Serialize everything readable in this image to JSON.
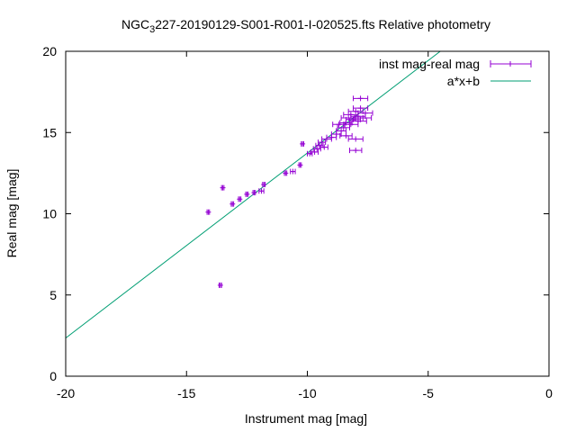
{
  "chart_data": {
    "type": "scatter",
    "title": "NGC 3227-20190129-S001-R001-I-020525.fts Relative photometry",
    "title_parts": {
      "prefix": "NGC",
      "sub": "3",
      "suffix": "227-20190129-S001-R001-I-020525.fts Relative photometry"
    },
    "xlabel": "Instrument mag [mag]",
    "ylabel": "Real mag [mag]",
    "xlim": [
      -20,
      0
    ],
    "ylim": [
      0,
      20
    ],
    "xticks": [
      -20,
      -15,
      -10,
      -5,
      0
    ],
    "yticks": [
      0,
      5,
      10,
      15,
      20
    ],
    "grid": false,
    "legend_position": "top-right",
    "colors": {
      "points": "#9400d3",
      "fit": "#009e73"
    },
    "series": [
      {
        "name": "inst mag-real mag",
        "kind": "points_with_xerror",
        "points": [
          {
            "x": -13.6,
            "y": 5.6,
            "xerr": 0.05
          },
          {
            "x": -14.1,
            "y": 10.1,
            "xerr": 0.05
          },
          {
            "x": -13.5,
            "y": 11.6,
            "xerr": 0.05
          },
          {
            "x": -13.1,
            "y": 10.6,
            "xerr": 0.05
          },
          {
            "x": -12.8,
            "y": 10.9,
            "xerr": 0.05
          },
          {
            "x": -12.5,
            "y": 11.2,
            "xerr": 0.05
          },
          {
            "x": -12.2,
            "y": 11.3,
            "xerr": 0.05
          },
          {
            "x": -11.9,
            "y": 11.4,
            "xerr": 0.1
          },
          {
            "x": -11.8,
            "y": 11.8,
            "xerr": 0.05
          },
          {
            "x": -10.9,
            "y": 12.5,
            "xerr": 0.05
          },
          {
            "x": -10.6,
            "y": 12.6,
            "xerr": 0.1
          },
          {
            "x": -10.3,
            "y": 13.0,
            "xerr": 0.05
          },
          {
            "x": -10.2,
            "y": 14.3,
            "xerr": 0.05
          },
          {
            "x": -9.9,
            "y": 13.7,
            "xerr": 0.1
          },
          {
            "x": -9.7,
            "y": 13.8,
            "xerr": 0.15
          },
          {
            "x": -9.6,
            "y": 14.0,
            "xerr": 0.15
          },
          {
            "x": -9.5,
            "y": 14.2,
            "xerr": 0.15
          },
          {
            "x": -9.4,
            "y": 14.4,
            "xerr": 0.15
          },
          {
            "x": -9.3,
            "y": 14.1,
            "xerr": 0.15
          },
          {
            "x": -9.2,
            "y": 14.6,
            "xerr": 0.2
          },
          {
            "x": -9.0,
            "y": 14.7,
            "xerr": 0.2
          },
          {
            "x": -8.8,
            "y": 14.9,
            "xerr": 0.2
          },
          {
            "x": -8.7,
            "y": 15.5,
            "xerr": 0.25
          },
          {
            "x": -8.6,
            "y": 15.1,
            "xerr": 0.2
          },
          {
            "x": -8.5,
            "y": 15.3,
            "xerr": 0.25
          },
          {
            "x": -8.4,
            "y": 15.6,
            "xerr": 0.25
          },
          {
            "x": -8.4,
            "y": 14.8,
            "xerr": 0.25
          },
          {
            "x": -8.3,
            "y": 15.9,
            "xerr": 0.3
          },
          {
            "x": -8.2,
            "y": 15.5,
            "xerr": 0.3
          },
          {
            "x": -8.2,
            "y": 16.1,
            "xerr": 0.3
          },
          {
            "x": -8.1,
            "y": 15.8,
            "xerr": 0.3
          },
          {
            "x": -8.0,
            "y": 16.3,
            "xerr": 0.3
          },
          {
            "x": -8.0,
            "y": 14.6,
            "xerr": 0.3
          },
          {
            "x": -8.0,
            "y": 13.9,
            "xerr": 0.25
          },
          {
            "x": -7.9,
            "y": 16.0,
            "xerr": 0.3
          },
          {
            "x": -7.9,
            "y": 15.7,
            "xerr": 0.35
          },
          {
            "x": -7.8,
            "y": 16.5,
            "xerr": 0.3
          },
          {
            "x": -7.8,
            "y": 17.1,
            "xerr": 0.3
          },
          {
            "x": -7.7,
            "y": 15.9,
            "xerr": 0.35
          },
          {
            "x": -7.6,
            "y": 16.2,
            "xerr": 0.3
          }
        ]
      },
      {
        "name": "a*x+b",
        "kind": "line",
        "x": [
          -20,
          -4.5
        ],
        "y": [
          2.35,
          20
        ]
      }
    ]
  }
}
